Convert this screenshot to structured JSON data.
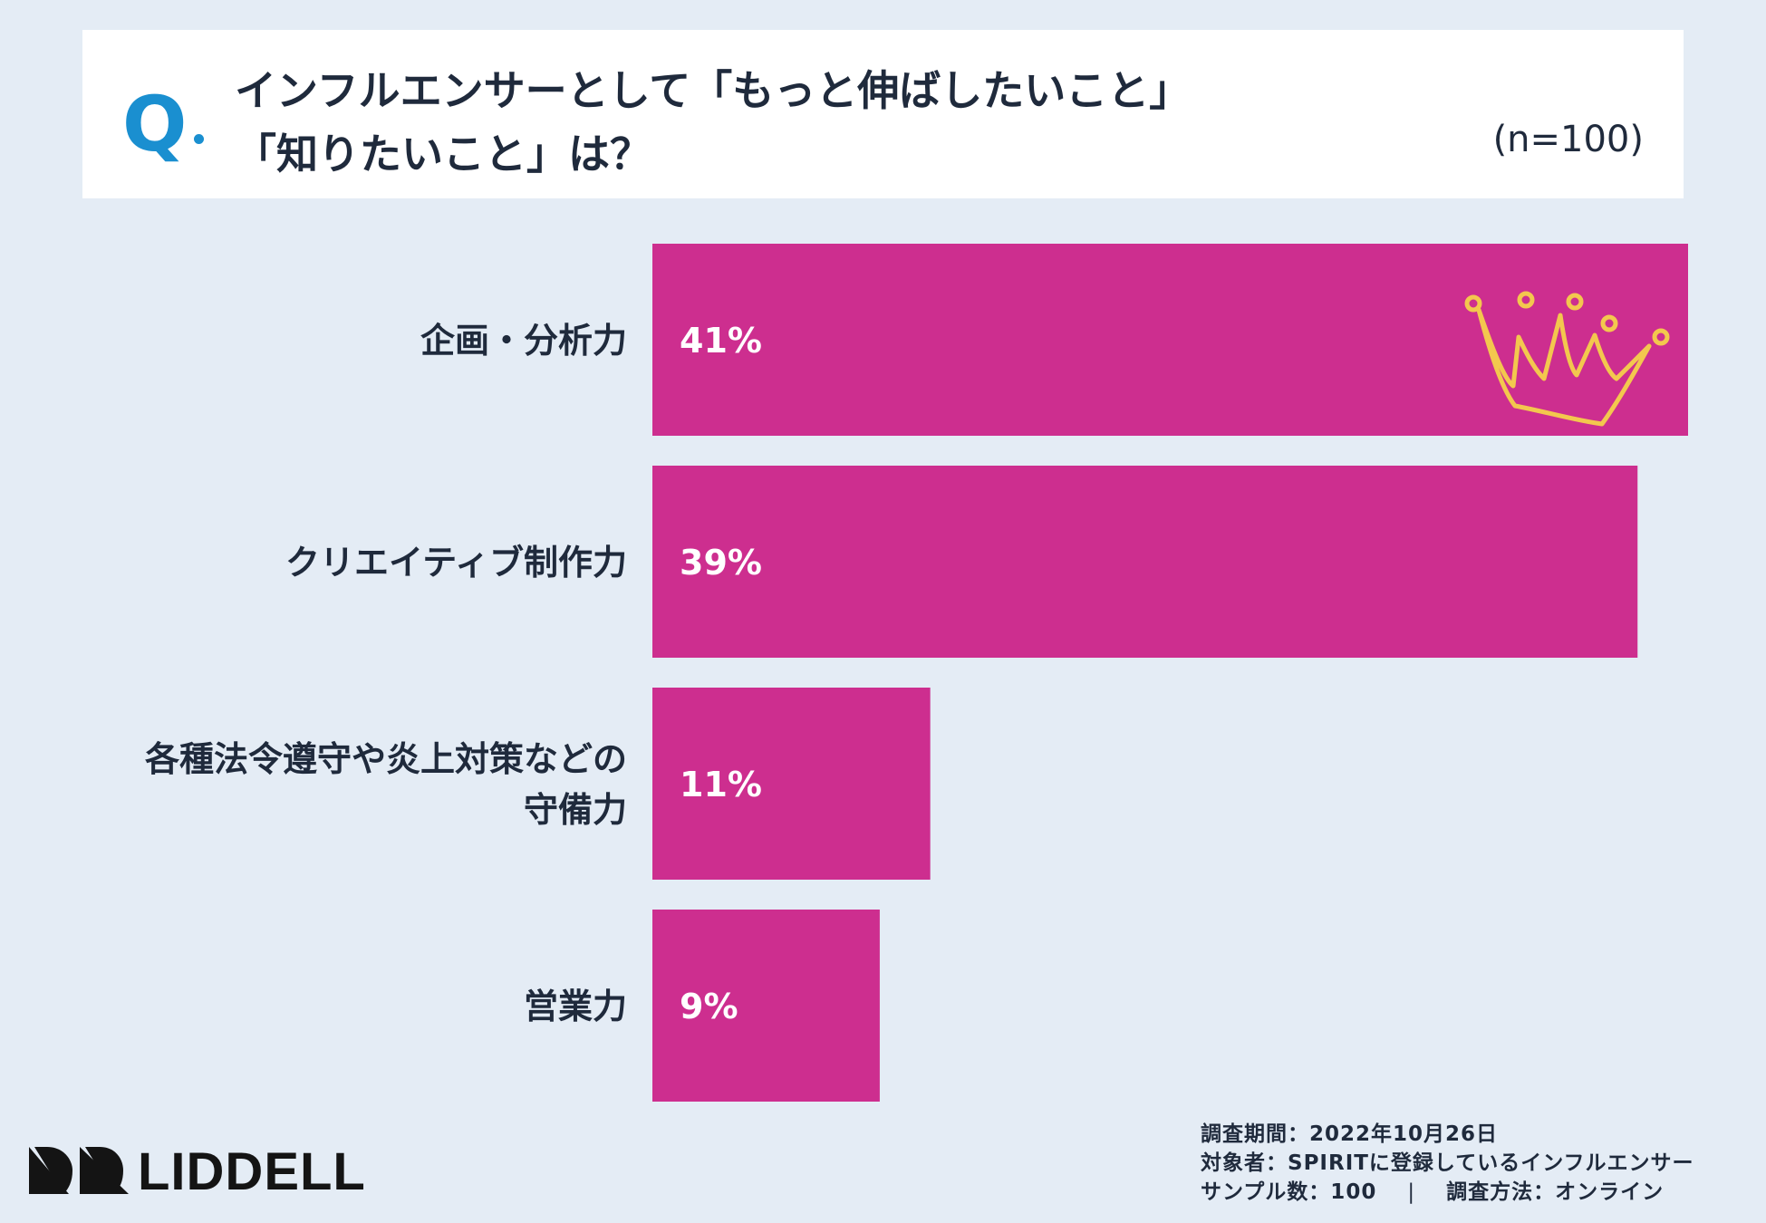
{
  "header": {
    "q_mark": "Q",
    "title_line1": "インフルエンサーとして「もっと伸ばしたいこと」",
    "title_line2": "「知りたいこと」は？",
    "sample": "(n=100)"
  },
  "chart_data": {
    "type": "bar",
    "orientation": "horizontal",
    "categories": [
      "企画・分析力",
      "クリエイティブ制作力",
      "各種法令遵守や炎上対策などの守備力",
      "営業力"
    ],
    "category_lines": [
      [
        "企画・分析力"
      ],
      [
        "クリエイティブ制作力"
      ],
      [
        "各種法令遵守や炎上対策などの",
        "守備力"
      ],
      [
        "営業力"
      ]
    ],
    "values": [
      41,
      39,
      11,
      9
    ],
    "value_labels": [
      "41%",
      "39%",
      "11%",
      "9%"
    ],
    "unit": "%",
    "xlim": [
      0,
      41
    ],
    "bar_color": "#cd2e8f",
    "label_color": "#ffffff",
    "highlight": "crown-icon on top bar",
    "grid": false
  },
  "footer": {
    "period": "調査期間：2022年10月26日",
    "target": "対象者：SPIRITに登録しているインフルエンサー",
    "sample_count": "サンプル数：100",
    "separator": "|",
    "method": "調査方法：オンライン"
  },
  "logo": {
    "text": "LIDDELL",
    "icon": "liddell-logo-icon"
  },
  "colors": {
    "background": "#e4ecf5",
    "accent": "#1a8fd0",
    "bar": "#cd2e8f",
    "crown": "#f3c74e",
    "text": "#1f2a3c"
  }
}
